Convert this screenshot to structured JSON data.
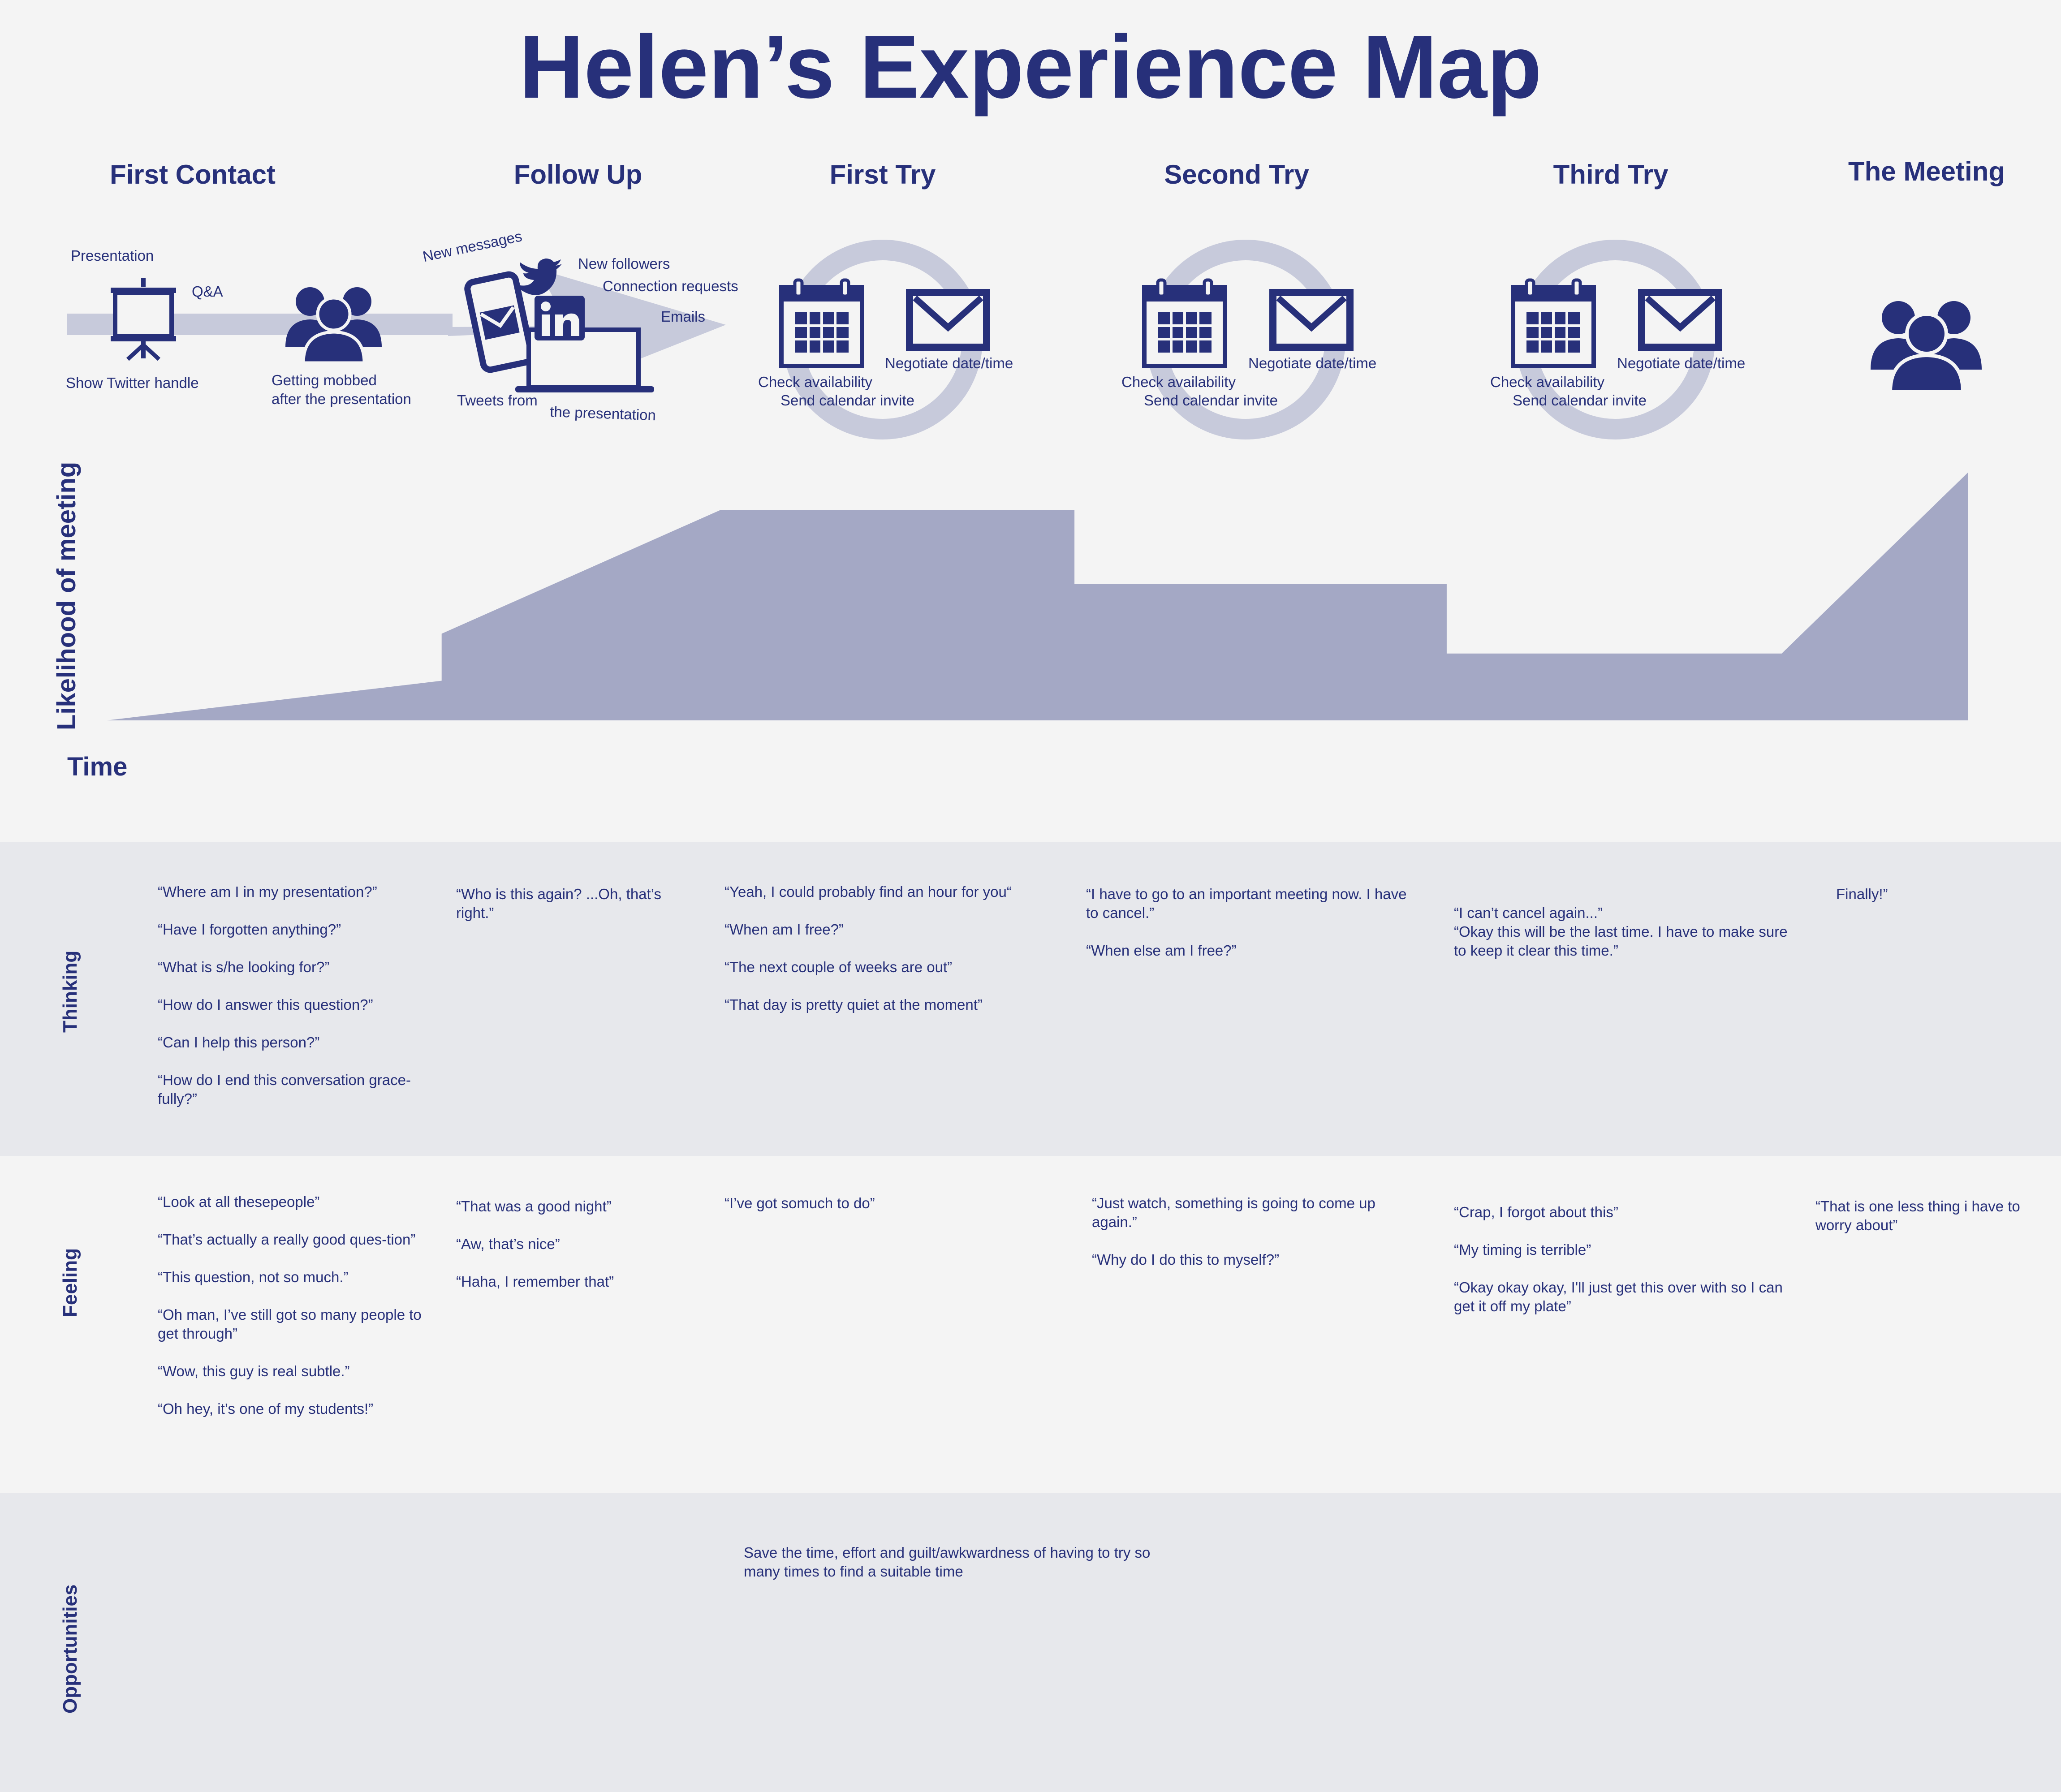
{
  "title": "Helen’s Experience Map",
  "stages": [
    "First Contact",
    "Follow Up",
    "First Try",
    "Second Try",
    "Third Try",
    "The Meeting"
  ],
  "first_contact": {
    "presentation": "Presentation",
    "qa": "Q&A",
    "twitter_handle": "Show Twitter handle",
    "mobbed": [
      "Getting mobbed",
      "after the presentation"
    ]
  },
  "follow_up": {
    "new_messages": "New messages",
    "new_followers": "New followers",
    "connection_requests": "Connection requests",
    "emails": "Emails",
    "tweets": "Tweets from",
    "the_presentation": "the presentation"
  },
  "tries": {
    "negotiate": "Negotiate date/time",
    "check": "Check availability",
    "send": "Send calendar invite"
  },
  "chart": {
    "ylabel": "Likelihood of meeting",
    "xlabel": "Time"
  },
  "chart_data": {
    "type": "area",
    "title": "",
    "xlabel": "Time",
    "ylabel": "Likelihood of meeting",
    "x": [
      0,
      0.18,
      0.18,
      0.33,
      0.52,
      0.52,
      0.72,
      0.72,
      0.9,
      1.0
    ],
    "values": [
      0,
      0.16,
      0.35,
      0.85,
      0.85,
      0.55,
      0.55,
      0.27,
      0.27,
      1.0
    ],
    "grid": false
  },
  "rows": {
    "thinking": {
      "label": "Thinking",
      "cols": [
        [
          "“Where am I in my presentation?”",
          "“Have I forgotten anything?”",
          "“What is s/he looking for?”",
          "“How do I answer this question?”",
          "“Can I help this person?”",
          "“How do I end this conversation grace-fully?”"
        ],
        [
          "“Who is this again? ...Oh, that’s right.”"
        ],
        [
          "“Yeah, I could probably find an hour for you“",
          "“When am I free?”",
          "“The next couple of weeks are out”",
          "“That day is pretty quiet at the moment”"
        ],
        [
          "“I have to go to an important meeting now. I have to cancel.”",
          "“When else am I free?”"
        ],
        [
          "“I can’t cancel again...”\n“Okay this will be the last time. I have to make sure to keep it clear this time.”"
        ],
        [
          "Finally!”"
        ]
      ]
    },
    "feeling": {
      "label": "Feeling",
      "cols": [
        [
          "“Look at all thesepeople”",
          "“That’s actually a really good ques-tion”",
          "“This question, not so much.”",
          "“Oh man, I’ve still got so many people to get through”",
          "“Wow, this guy is real subtle.”",
          "“Oh hey, it’s one of my students!”"
        ],
        [
          "“That was a good night”",
          "“Aw, that’s nice”",
          "“Haha, I remember that”"
        ],
        [
          "“I’ve got somuch to do”"
        ],
        [
          "“Just watch, something is going to come up again.”",
          "“Why do I do this to myself?”"
        ],
        [
          "“Crap, I forgot about this”",
          "“My timing is terrible”",
          "“Okay okay okay,  I'll just get this over with so I can get it off my plate”"
        ],
        [
          "“That is one less thing i have to worry about”"
        ]
      ]
    },
    "opportunities": {
      "label": "Opportunities",
      "text": "Save the time, effort and guilt/awkwardness of having to try so many times to find a suitable time"
    }
  },
  "colors": {
    "navy": "#27307a",
    "area": "#a4a8c5",
    "ring": "#c7cadb",
    "band_alt": "#e7e8ec",
    "band": "#f4f4f4"
  }
}
